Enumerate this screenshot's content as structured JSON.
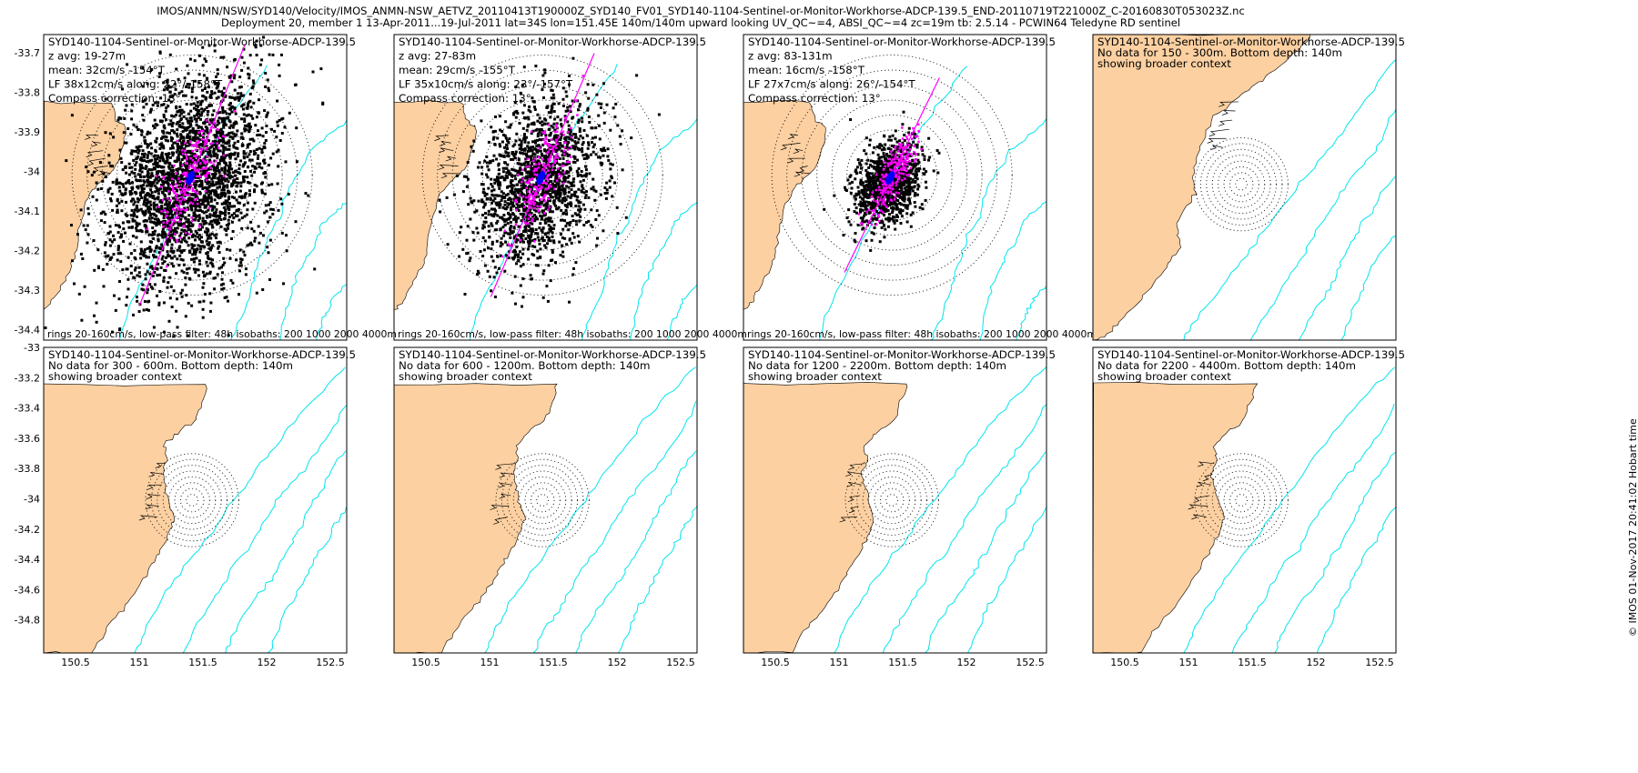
{
  "header": {
    "line1": "IMOS/ANMN/NSW/SYD140/Velocity/IMOS_ANMN-NSW_AETVZ_20110413T190000Z_SYD140_FV01_SYD140-1104-Sentinel-or-Monitor-Workhorse-ADCP-139.5_END-20110719T221000Z_C-20160830T053023Z.nc",
    "line2": "Deployment 20, member 1 13-Apr-2011...19-Jul-2011 lat=34S lon=151.45E 140m/140m upward looking UV_QC~=4, ABSI_QC~=4 zc=19m tb: 2.5.14 - PCWIN64 Teledyne RD sentinel"
  },
  "copyright": "© IMOS 01-Nov-2017 20:41:02 Hobart time",
  "colors": {
    "land": "#fcd0a1",
    "isobath": "#00e5ee",
    "scatter": "#000000",
    "lowpass": "#ff00ff",
    "principal_axis": "#ff00ff",
    "mean": "#0000ff"
  },
  "axes": {
    "x_ticks": [
      "150.5",
      "151",
      "151.5",
      "152",
      "152.5"
    ],
    "top_y_ticks": [
      "-33.7",
      "-33.8",
      "-33.9",
      "-34",
      "-34.1",
      "-34.2",
      "-34.3",
      "-34.4"
    ],
    "bottom_y_ticks": [
      "-33",
      "-33.2",
      "-33.4",
      "-33.6",
      "-33.8",
      "-34",
      "-34.2",
      "-34.4",
      "-34.6",
      "-34.8"
    ]
  },
  "panels": [
    {
      "lines": [
        "SYD140-1104-Sentinel-or-Monitor-Workhorse-ADCP-139.5",
        "z avg: 19-27m",
        "mean: 32cm/s -154°T",
        "LF 38x12cm/s along: 22°/-158°T",
        "Compass correction: 13°"
      ],
      "footer": "rings 20-160cm/s, low-pass filter: 48h isobaths: 200 1000 2000 4000m"
    },
    {
      "lines": [
        "SYD140-1104-Sentinel-or-Monitor-Workhorse-ADCP-139.5",
        "z avg: 27-83m",
        "mean: 29cm/s -155°T",
        "LF 35x10cm/s along: 23°/-157°T",
        "Compass correction: 13°"
      ],
      "footer": "rings 20-160cm/s, low-pass filter: 48h isobaths: 200 1000 2000 4000m"
    },
    {
      "lines": [
        "SYD140-1104-Sentinel-or-Monitor-Workhorse-ADCP-139.5",
        "z avg: 83-131m",
        "mean: 16cm/s -158°T",
        "LF 27x7cm/s along: 26°/-154°T",
        "Compass correction: 13°"
      ],
      "footer": "rings 20-160cm/s, low-pass filter: 48h isobaths: 200 1000 2000 4000m"
    },
    {
      "lines": [
        "SYD140-1104-Sentinel-or-Monitor-Workhorse-ADCP-139.5",
        "No data for 150 - 300m. Bottom depth: 140m",
        "showing broader context"
      ],
      "footer": ""
    },
    {
      "lines": [
        "SYD140-1104-Sentinel-or-Monitor-Workhorse-ADCP-139.5",
        "No data for 300 - 600m. Bottom depth: 140m",
        "showing broader context"
      ],
      "footer": ""
    },
    {
      "lines": [
        "SYD140-1104-Sentinel-or-Monitor-Workhorse-ADCP-139.5",
        "No data for 600 - 1200m. Bottom depth: 140m",
        "showing broader context"
      ],
      "footer": ""
    },
    {
      "lines": [
        "SYD140-1104-Sentinel-or-Monitor-Workhorse-ADCP-139.5",
        "No data for 1200 - 2200m. Bottom depth: 140m",
        "showing broader context"
      ],
      "footer": ""
    },
    {
      "lines": [
        "SYD140-1104-Sentinel-or-Monitor-Workhorse-ADCP-139.5",
        "No data for 2200 - 4400m. Bottom depth: 140m",
        "showing broader context"
      ],
      "footer": ""
    }
  ],
  "chart_data": [
    {
      "type": "scatter",
      "panel": 1,
      "title": "SYD140-1104-Sentinel-or-Monitor-Workhorse-ADCP-139.5",
      "depth_range_m": [
        19,
        27
      ],
      "mean_speed_cms": 32,
      "mean_dir_degT": -154,
      "lf_major_cms": 38,
      "lf_minor_cms": 12,
      "along_deg": 22,
      "along_degT": -158,
      "rings_cms": [
        20,
        160
      ],
      "xlim": [
        150.2,
        152.7
      ],
      "ylim": [
        -34.45,
        -33.65
      ],
      "center": [
        151.45,
        -34.0
      ]
    },
    {
      "type": "scatter",
      "panel": 2,
      "title": "SYD140-1104-Sentinel-or-Monitor-Workhorse-ADCP-139.5",
      "depth_range_m": [
        27,
        83
      ],
      "mean_speed_cms": 29,
      "mean_dir_degT": -155,
      "lf_major_cms": 35,
      "lf_minor_cms": 10,
      "along_deg": 23,
      "along_degT": -157,
      "rings_cms": [
        20,
        160
      ],
      "xlim": [
        150.2,
        152.7
      ],
      "ylim": [
        -34.45,
        -33.65
      ],
      "center": [
        151.45,
        -34.0
      ]
    },
    {
      "type": "scatter",
      "panel": 3,
      "title": "SYD140-1104-Sentinel-or-Monitor-Workhorse-ADCP-139.5",
      "depth_range_m": [
        83,
        131
      ],
      "mean_speed_cms": 16,
      "mean_dir_degT": -158,
      "lf_major_cms": 27,
      "lf_minor_cms": 7,
      "along_deg": 26,
      "along_degT": -154,
      "rings_cms": [
        20,
        160
      ],
      "xlim": [
        150.2,
        152.7
      ],
      "ylim": [
        -34.45,
        -33.65
      ],
      "center": [
        151.45,
        -34.0
      ]
    },
    {
      "type": "map",
      "panel": 4,
      "depth_range_m": [
        150,
        300
      ],
      "bottom_depth_m": 140,
      "xlim": [
        150.2,
        152.7
      ],
      "ylim": [
        -34.45,
        -33.65
      ]
    },
    {
      "type": "map",
      "panel": 5,
      "depth_range_m": [
        300,
        600
      ],
      "bottom_depth_m": 140,
      "xlim": [
        150.2,
        152.7
      ],
      "ylim": [
        -34.95,
        -32.95
      ]
    },
    {
      "type": "map",
      "panel": 6,
      "depth_range_m": [
        600,
        1200
      ],
      "bottom_depth_m": 140,
      "xlim": [
        150.2,
        152.7
      ],
      "ylim": [
        -34.95,
        -32.95
      ]
    },
    {
      "type": "map",
      "panel": 7,
      "depth_range_m": [
        1200,
        2200
      ],
      "bottom_depth_m": 140,
      "xlim": [
        150.2,
        152.7
      ],
      "ylim": [
        -34.95,
        -32.95
      ]
    },
    {
      "type": "map",
      "panel": 8,
      "depth_range_m": [
        2200,
        4400
      ],
      "bottom_depth_m": 140,
      "xlim": [
        150.2,
        152.7
      ],
      "ylim": [
        -34.95,
        -32.95
      ]
    }
  ]
}
